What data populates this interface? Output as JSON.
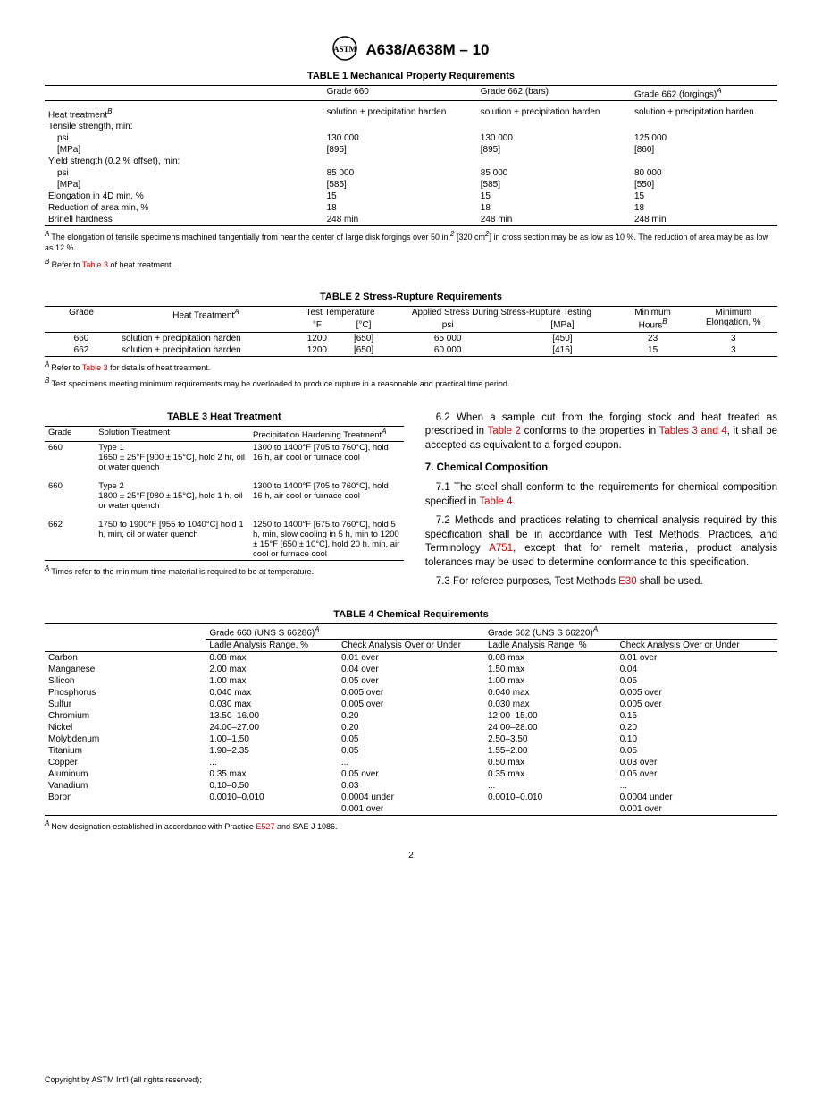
{
  "header": {
    "doc": "A638/A638M – 10"
  },
  "table1": {
    "title": "TABLE 1 Mechanical Property Requirements",
    "cols": [
      "",
      "Grade 660",
      "Grade 662 (bars)",
      "Grade 662 (forgings)"
    ],
    "col4_sup": "A",
    "rows": [
      {
        "label": "Heat treatment",
        "sup": "B",
        "v": [
          "solution + precipitation harden",
          "solution + precipitation harden",
          "solution + precipitation harden"
        ]
      },
      {
        "label": "Tensile strength, min:",
        "v": [
          "",
          "",
          ""
        ]
      },
      {
        "label": "psi",
        "indent": true,
        "v": [
          "130 000",
          "130 000",
          "125 000"
        ]
      },
      {
        "label": "[MPa]",
        "indent": true,
        "v": [
          "[895]",
          "[895]",
          "[860]"
        ]
      },
      {
        "label": "Yield strength (0.2 % offset), min:",
        "v": [
          "",
          "",
          ""
        ]
      },
      {
        "label": "psi",
        "indent": true,
        "v": [
          "85 000",
          "85 000",
          "80 000"
        ]
      },
      {
        "label": "[MPa]",
        "indent": true,
        "v": [
          "[585]",
          "[585]",
          "[550]"
        ]
      },
      {
        "label": "Elongation in 4D min, %",
        "v": [
          "15",
          "15",
          "15"
        ]
      },
      {
        "label": "Reduction of area min, %",
        "v": [
          "18",
          "18",
          "18"
        ]
      },
      {
        "label": "Brinell hardness",
        "v": [
          "248 min",
          "248 min",
          "248 min"
        ]
      }
    ],
    "footA_1": "The elongation of tensile specimens machined tangentially from near the center of large disk forgings over 50 in.",
    "footA_2": " [320 cm",
    "footA_3": "] in cross section may be as low as 10 %. The reduction of area may be as low as 12 %.",
    "footB_pre": "Refer to ",
    "footB_link": "Table 3",
    "footB_post": " of heat treatment."
  },
  "table2": {
    "title": "TABLE 2 Stress-Rupture Requirements",
    "h1": [
      "Grade",
      "Heat Treatment",
      "Test Temperature",
      "Applied Stress During Stress-Rupture Testing",
      "Minimum Hours",
      "Minimum Elongation, %"
    ],
    "h1_supA": "A",
    "h1_supB": "B",
    "h2": [
      "°F",
      "[°C]",
      "psi",
      "[MPa]"
    ],
    "rows": [
      [
        "660",
        "solution + precipitation harden",
        "1200",
        "[650]",
        "65 000",
        "[450]",
        "23",
        "3"
      ],
      [
        "662",
        "solution + precipitation harden",
        "1200",
        "[650]",
        "60 000",
        "[415]",
        "15",
        "3"
      ]
    ],
    "footA_pre": "Refer to ",
    "footA_link": "Table 3",
    "footA_post": " for details of heat treatment.",
    "footB": "Test specimens meeting minimum requirements may be overloaded to produce rupture in a reasonable and practical time period."
  },
  "table3": {
    "title": "TABLE 3 Heat Treatment",
    "cols": [
      "Grade",
      "Solution Treatment",
      "Precipitation Hardening Treatment"
    ],
    "col3_sup": "A",
    "rows": [
      {
        "g": "660",
        "s": "Type 1\n1650 ± 25°F [900 ± 15°C], hold 2 hr, oil or water quench",
        "p": "1300 to 1400°F [705 to 760°C], hold 16 h, air cool or furnace cool"
      },
      {
        "g": "660",
        "s": "Type 2\n1800 ± 25°F [980 ± 15°C], hold 1 h, oil or water quench",
        "p": "1300 to 1400°F [705 to 760°C], hold 16 h, air cool or furnace cool"
      },
      {
        "g": "662",
        "s": "1750 to 1900°F [955 to 1040°C] hold 1 h, min, oil or water quench",
        "p": "1250 to 1400°F [675 to 760°C], hold 5 h, min, slow cooling in 5 h, min to 1200 ± 15°F [650 ± 10°C], hold 20 h, min, air cool or furnace cool"
      }
    ],
    "foot": "Times refer to the minimum time material is required to be at temperature."
  },
  "body": {
    "p62_a": "6.2 When a sample cut from the forging stock and heat treated as prescribed in ",
    "p62_l1": "Table 2",
    "p62_b": " conforms to the properties in ",
    "p62_l2": "Tables 3 and 4",
    "p62_c": ", it shall be accepted as equivalent to a forged coupon.",
    "h7": "7.  Chemical Composition",
    "p71_a": "7.1  The steel shall conform to the requirements for chemical composition specified in ",
    "p71_l": "Table 4",
    "p71_b": ".",
    "p72_a": "7.2 Methods and practices relating to chemical analysis required by this specification shall be in accordance with Test Methods, Practices, and Terminology ",
    "p72_l": "A751",
    "p72_b": ", except that for remelt material, product analysis tolerances may be used to determine conformance to this specification.",
    "p73_a": "7.3  For referee purposes, Test Methods ",
    "p73_l": "E30",
    "p73_b": " shall be used."
  },
  "table4": {
    "title": "TABLE 4 Chemical Requirements",
    "g1": "Grade 660 (UNS S 66286)",
    "g2": "Grade 662 (UNS S 66220)",
    "sup": "A",
    "sub": [
      "Ladle Analysis Range, %",
      "Check Analysis Over or Under",
      "Ladle Analysis Range, %",
      "Check Analysis Over or Under"
    ],
    "rows": [
      [
        "Carbon",
        "0.08 max",
        "0.01 over",
        "0.08 max",
        "0.01 over"
      ],
      [
        "Manganese",
        "2.00 max",
        "0.04 over",
        "1.50 max",
        "0.04"
      ],
      [
        "Silicon",
        "1.00 max",
        "0.05 over",
        "1.00 max",
        "0.05"
      ],
      [
        "Phosphorus",
        "0.040 max",
        "0.005 over",
        "0.040 max",
        "0.005 over"
      ],
      [
        "Sulfur",
        "0.030 max",
        "0.005 over",
        "0.030 max",
        "0.005 over"
      ],
      [
        "Chromium",
        "13.50–16.00",
        "0.20",
        "12.00–15.00",
        "0.15"
      ],
      [
        "Nickel",
        "24.00–27.00",
        "0.20",
        "24.00–28.00",
        "0.20"
      ],
      [
        "Molybdenum",
        "1.00–1.50",
        "0.05",
        "2.50–3.50",
        "0.10"
      ],
      [
        "Titanium",
        "1.90–2.35",
        "0.05",
        "1.55–2.00",
        "0.05"
      ],
      [
        "Copper",
        "...",
        "...",
        "0.50 max",
        "0.03 over"
      ],
      [
        "Aluminum",
        "0.35 max",
        "0.05 over",
        "0.35 max",
        "0.05 over"
      ],
      [
        "Vanadium",
        "0.10–0.50",
        "0.03",
        "...",
        "..."
      ],
      [
        "Boron",
        "0.0010–0.010",
        "0.0004 under",
        "0.0010–0.010",
        "0.0004 under"
      ],
      [
        "",
        "",
        "0.001 over",
        "",
        "0.001 over"
      ]
    ],
    "foot_pre": "New designation established in accordance with Practice ",
    "foot_link": "E527",
    "foot_post": " and SAE J 1086."
  },
  "footer": {
    "copyright": "Copyright by ASTM Int'l (all rights reserved);",
    "page": "2"
  }
}
